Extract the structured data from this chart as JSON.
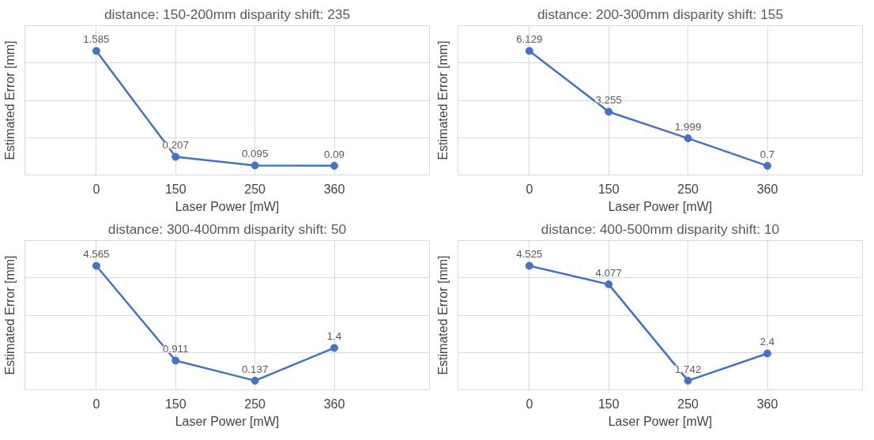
{
  "chart_data": [
    {
      "type": "line",
      "title": "distance: 150-200mm disparity shift: 235",
      "xlabel": "Laser Power [mW]",
      "ylabel": "Estimated Error [mm]",
      "categories": [
        "0",
        "150",
        "250",
        "360"
      ],
      "series": [
        {
          "color": "#4472c4",
          "values": [
            1.585,
            0.207,
            0.095,
            0.09
          ]
        }
      ],
      "data_labels": true,
      "grid": true,
      "tick_labels": "x",
      "marker": "circle"
    },
    {
      "type": "line",
      "title": "distance: 200-300mm disparity shift: 155",
      "xlabel": "Laser Power [mW]",
      "ylabel": "Estimated Error [mm]",
      "categories": [
        "0",
        "150",
        "250",
        "360"
      ],
      "series": [
        {
          "color": "#4472c4",
          "values": [
            6.129,
            3.255,
            1.999,
            0.7
          ]
        }
      ],
      "data_labels": true,
      "grid": true,
      "tick_labels": "x",
      "marker": "circle"
    },
    {
      "type": "line",
      "title": "distance: 300-400mm disparity shift: 50",
      "xlabel": "Laser Power [mW]",
      "ylabel": "Estimated Error [mm]",
      "categories": [
        "0",
        "150",
        "250",
        "360"
      ],
      "series": [
        {
          "color": "#4472c4",
          "values": [
            4.565,
            0.911,
            0.137,
            1.4
          ]
        }
      ],
      "data_labels": true,
      "grid": true,
      "tick_labels": "x",
      "marker": "circle"
    },
    {
      "type": "line",
      "title": "distance: 400-500mm disparity shift: 10",
      "xlabel": "Laser Power [mW]",
      "ylabel": "Estimated Error [mm]",
      "categories": [
        "0",
        "150",
        "250",
        "360"
      ],
      "series": [
        {
          "color": "#4472c4",
          "values": [
            4.525,
            4.077,
            1.742,
            2.4
          ]
        }
      ],
      "data_labels": true,
      "grid": true,
      "tick_labels": "x",
      "marker": "circle"
    }
  ]
}
